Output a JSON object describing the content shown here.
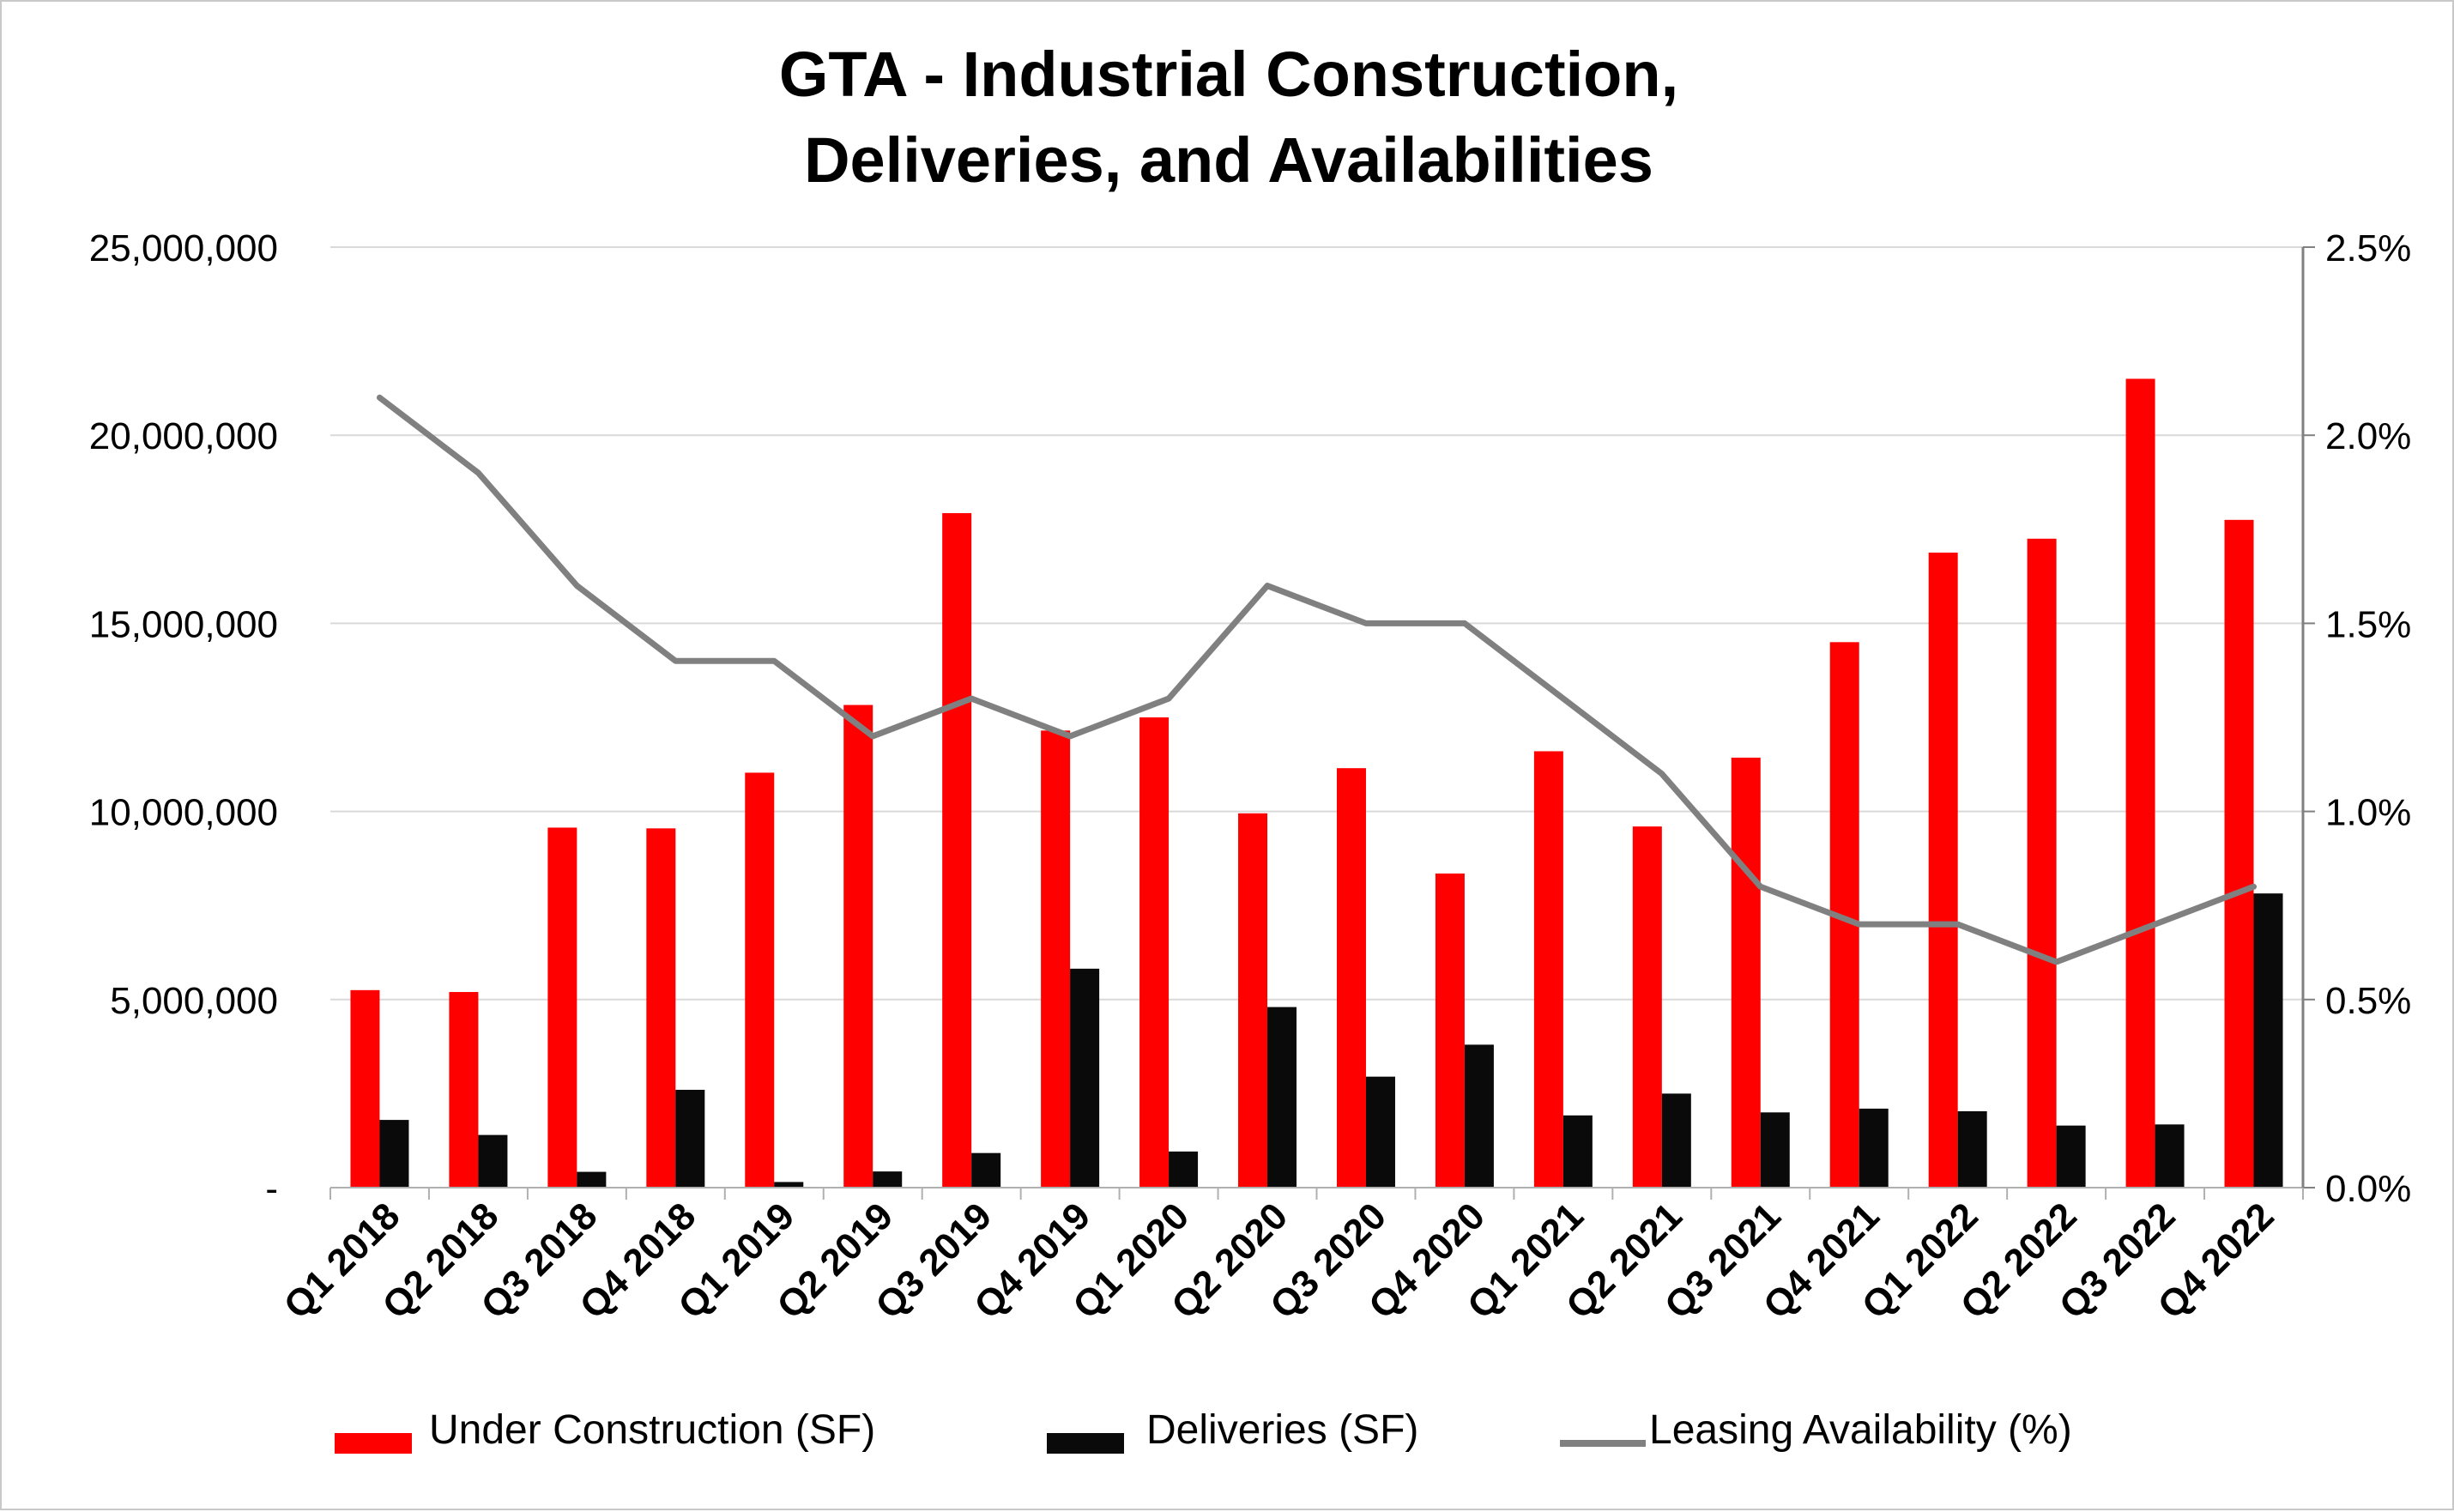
{
  "chart_data": {
    "type": "bar",
    "title": [
      "GTA - Industrial Construction,",
      "Deliveries, and Availabilities"
    ],
    "categories": [
      "Q1 2018",
      "Q2 2018",
      "Q3 2018",
      "Q4 2018",
      "Q1 2019",
      "Q2 2019",
      "Q3 2019",
      "Q4 2019",
      "Q1 2020",
      "Q2 2020",
      "Q3 2020",
      "Q4 2020",
      "Q1 2021",
      "Q2 2021",
      "Q3 2021",
      "Q4 2021",
      "Q1 2022",
      "Q2 2022",
      "Q3 2022",
      "Q4 2022"
    ],
    "series": [
      {
        "name": "Under Construction (SF)",
        "type": "bar",
        "axis": "left",
        "color": "#ff0000",
        "values": [
          5250000,
          5200000,
          9570000,
          9550000,
          11030000,
          12830000,
          17930000,
          12150000,
          12500000,
          9950000,
          11150000,
          8350000,
          11600000,
          9600000,
          11430000,
          14500000,
          16880000,
          17250000,
          21500000,
          17750000
        ]
      },
      {
        "name": "Deliveries (SF)",
        "type": "bar",
        "axis": "left",
        "color": "#0a0a0a",
        "values": [
          1800000,
          1400000,
          420000,
          2600000,
          150000,
          430000,
          920000,
          5820000,
          960000,
          4800000,
          2950000,
          3800000,
          1920000,
          2500000,
          2000000,
          2100000,
          2030000,
          1650000,
          1680000,
          7820000
        ]
      },
      {
        "name": "Leasing Availability (%)",
        "type": "line",
        "axis": "right",
        "color": "#808080",
        "values": [
          2.1,
          1.9,
          1.6,
          1.4,
          1.4,
          1.2,
          1.3,
          1.2,
          1.3,
          1.6,
          1.5,
          1.5,
          1.3,
          1.1,
          0.8,
          0.7,
          0.7,
          0.6,
          0.7,
          0.8
        ]
      }
    ],
    "y_left": {
      "min": 0,
      "max": 25000000,
      "ticks": [
        0,
        5000000,
        10000000,
        15000000,
        20000000,
        25000000
      ],
      "tick_labels": [
        "-",
        "5,000,000",
        "10,000,000",
        "15,000,000",
        "20,000,000",
        "25,000,000"
      ]
    },
    "y_right": {
      "min": 0,
      "max": 2.5,
      "ticks": [
        0,
        0.5,
        1.0,
        1.5,
        2.0,
        2.5
      ],
      "tick_labels": [
        "0.0%",
        "0.5%",
        "1.0%",
        "1.5%",
        "2.0%",
        "2.5%"
      ]
    },
    "grid": true,
    "legend_position": "bottom"
  }
}
